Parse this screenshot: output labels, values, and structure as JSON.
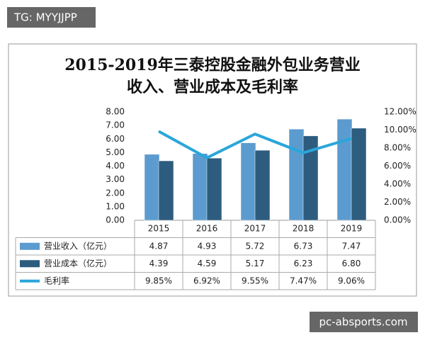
{
  "watermarks": {
    "top_left": "TG: MYYJJPP",
    "bottom_right": "pc-absports.com"
  },
  "chart_data": {
    "type": "bar",
    "title": [
      "2015-2019年三泰控股金融外包业务营业",
      "收入、营业成本及毛利率"
    ],
    "categories": [
      "2015",
      "2016",
      "2017",
      "2018",
      "2019"
    ],
    "series": [
      {
        "name": "营业收入（亿元）",
        "color": "#5b9bcf",
        "values": [
          4.87,
          4.93,
          5.72,
          6.73,
          7.47
        ],
        "value_labels": [
          "4.87",
          "4.93",
          "5.72",
          "6.73",
          "7.47"
        ]
      },
      {
        "name": "营业成本（亿元）",
        "color": "#2d5c7e",
        "values": [
          4.39,
          4.59,
          5.17,
          6.23,
          6.8
        ],
        "value_labels": [
          "4.39",
          "4.59",
          "5.17",
          "6.23",
          "6.80"
        ]
      },
      {
        "name": "毛利率",
        "type": "line",
        "axis": "y2",
        "color": "#2aa6da",
        "values": [
          9.85,
          6.92,
          9.55,
          7.47,
          9.06
        ],
        "value_labels": [
          "9.85%",
          "6.92%",
          "9.55%",
          "7.47%",
          "9.06%"
        ]
      }
    ],
    "ylim": [
      0,
      8
    ],
    "yticks": [
      {
        "value": 0,
        "label": "0.00"
      },
      {
        "value": 1,
        "label": "1.00"
      },
      {
        "value": 2,
        "label": "2.00"
      },
      {
        "value": 3,
        "label": "3.00"
      },
      {
        "value": 4,
        "label": "4.00"
      },
      {
        "value": 5,
        "label": "5.00"
      },
      {
        "value": 6,
        "label": "6.00"
      },
      {
        "value": 7,
        "label": "7.00"
      },
      {
        "value": 8,
        "label": "8.00"
      }
    ],
    "y2lim": [
      0,
      12
    ],
    "y2ticks": [
      {
        "value": 0,
        "label": "0.00%"
      },
      {
        "value": 2,
        "label": "2.00%"
      },
      {
        "value": 4,
        "label": "4.00%"
      },
      {
        "value": 6,
        "label": "6.00%"
      },
      {
        "value": 8,
        "label": "8.00%"
      },
      {
        "value": 10,
        "label": "10.00%"
      },
      {
        "value": 12,
        "label": "12.00%"
      }
    ],
    "grid": false,
    "data_table": true
  }
}
